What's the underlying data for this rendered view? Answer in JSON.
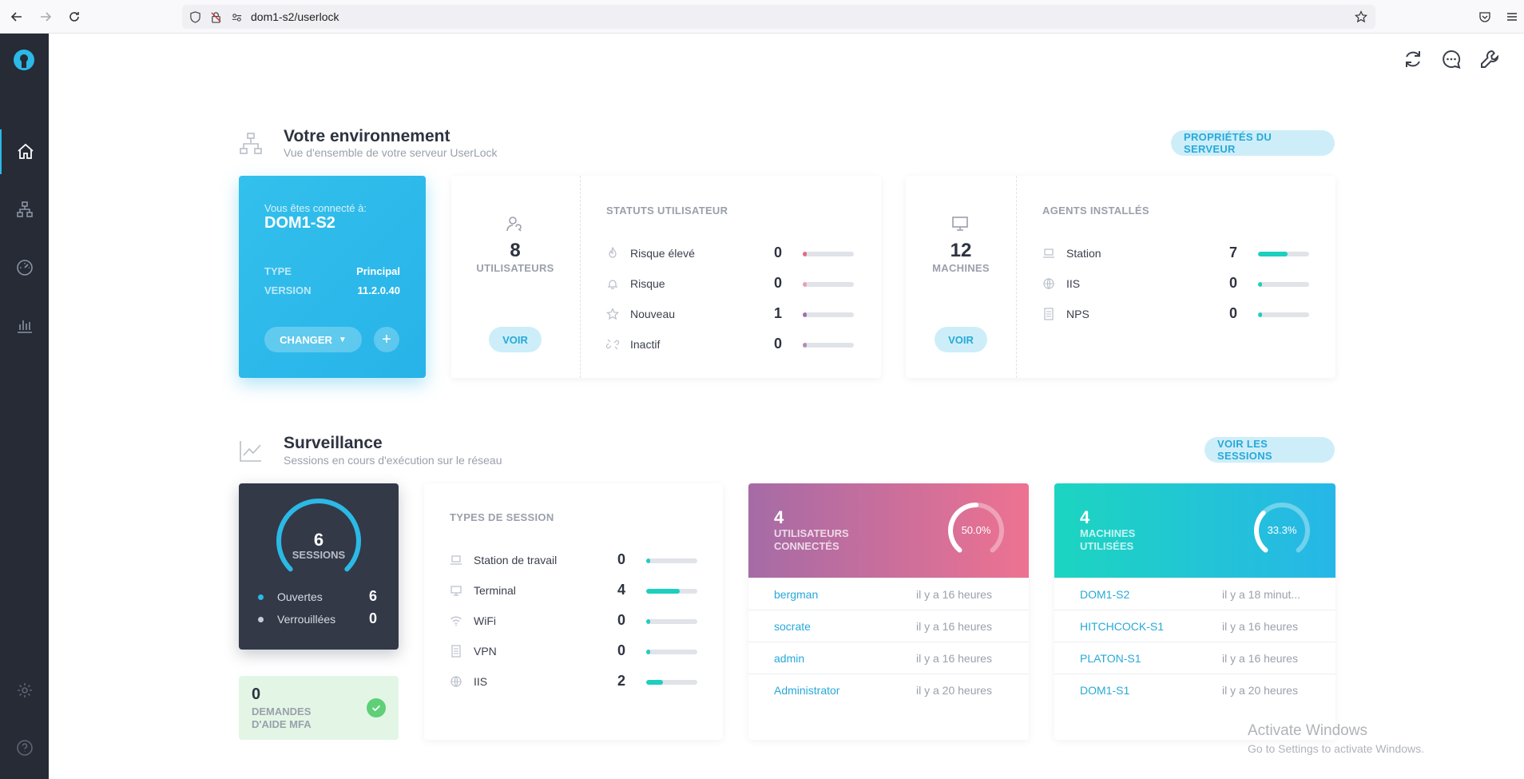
{
  "browser": {
    "url": "dom1-s2/userlock"
  },
  "sidebar": {
    "items": [
      {
        "name": "home",
        "active": true
      },
      {
        "name": "network"
      },
      {
        "name": "dashboard"
      },
      {
        "name": "reports"
      }
    ]
  },
  "env": {
    "title": "Votre environnement",
    "subtitle": "Vue d'ensemble de votre serveur UserLock",
    "props_button": "PROPRIÉTÉS DU SERVEUR",
    "server": {
      "connected_label": "Vous êtes connecté à:",
      "name": "DOM1-S2",
      "type_key": "TYPE",
      "type_val": "Principal",
      "version_key": "VERSION",
      "version_val": "11.2.0.40",
      "change_label": "CHANGER",
      "plus_label": "+"
    },
    "users": {
      "count": "8",
      "label": "UTILISATEURS",
      "voir": "VOIR",
      "status_title": "STATUTS UTILISATEUR",
      "rows": [
        {
          "label": "Risque élevé",
          "value": "0",
          "fill": 0.04,
          "color": "#e06a86",
          "icon": "flame-icon"
        },
        {
          "label": "Risque",
          "value": "0",
          "fill": 0.04,
          "color": "#e9a0b4",
          "icon": "alarm-icon"
        },
        {
          "label": "Nouveau",
          "value": "1",
          "fill": 0.04,
          "color": "#a06fa8",
          "icon": "star-icon"
        },
        {
          "label": "Inactif",
          "value": "0",
          "fill": 0.04,
          "color": "#b58ab8",
          "icon": "unlink-icon"
        }
      ]
    },
    "machines": {
      "count": "12",
      "label": "MACHINES",
      "voir": "VOIR",
      "agents_title": "AGENTS INSTALLÉS",
      "rows": [
        {
          "label": "Station",
          "value": "7",
          "fill": 0.58,
          "color": "#1ccfbf",
          "icon": "laptop-icon"
        },
        {
          "label": "IIS",
          "value": "0",
          "fill": 0.04,
          "color": "#1ccfbf",
          "icon": "globe-icon"
        },
        {
          "label": "NPS",
          "value": "0",
          "fill": 0.04,
          "color": "#1ccfbf",
          "icon": "server-icon"
        }
      ]
    }
  },
  "surv": {
    "title": "Surveillance",
    "subtitle": "Sessions en cours d'exécution sur le réseau",
    "sessions_button": "VOIR LES SESSIONS",
    "sessions": {
      "count": "6",
      "label": "SESSIONS",
      "open_label": "Ouvertes",
      "open_value": "6",
      "locked_label": "Verrouillées",
      "locked_value": "0",
      "open_fraction": 1.0
    },
    "mfa": {
      "count": "0",
      "label_1": "DEMANDES",
      "label_2": "D'AIDE MFA"
    },
    "types": {
      "title": "TYPES DE SESSION",
      "rows": [
        {
          "label": "Station de travail",
          "value": "0",
          "fill": 0.06,
          "icon": "laptop-icon"
        },
        {
          "label": "Terminal",
          "value": "4",
          "fill": 0.66,
          "icon": "monitor-icon"
        },
        {
          "label": "WiFi",
          "value": "0",
          "fill": 0.06,
          "icon": "wifi-icon"
        },
        {
          "label": "VPN",
          "value": "0",
          "fill": 0.06,
          "icon": "server-icon"
        },
        {
          "label": "IIS",
          "value": "2",
          "fill": 0.33,
          "icon": "globe-icon"
        }
      ]
    },
    "users_connected": {
      "count": "4",
      "label_1": "UTILISATEURS",
      "label_2": "CONNECTÉS",
      "percent": "50.0%",
      "fraction": 0.5,
      "rows": [
        {
          "name": "bergman",
          "time": "il y a 16 heures"
        },
        {
          "name": "socrate",
          "time": "il y a 16 heures"
        },
        {
          "name": "admin",
          "time": "il y a 16 heures"
        },
        {
          "name": "Administrator",
          "time": "il y a 20 heures"
        }
      ]
    },
    "machines_used": {
      "count": "4",
      "label_1": "MACHINES",
      "label_2": "UTILISÉES",
      "percent": "33.3%",
      "fraction": 0.333,
      "rows": [
        {
          "name": "DOM1-S2",
          "time": "il y a 18 minut..."
        },
        {
          "name": "HITCHCOCK-S1",
          "time": "il y a 16 heures"
        },
        {
          "name": "PLATON-S1",
          "time": "il y a 16 heures"
        },
        {
          "name": "DOM1-S1",
          "time": "il y a 20 heures"
        }
      ]
    }
  },
  "watermark": {
    "title": "Activate Windows",
    "sub": "Go to Settings to activate Windows."
  },
  "colors": {
    "accent": "#27b3e8",
    "teal": "#1ccfbf",
    "dark": "#262b36"
  }
}
